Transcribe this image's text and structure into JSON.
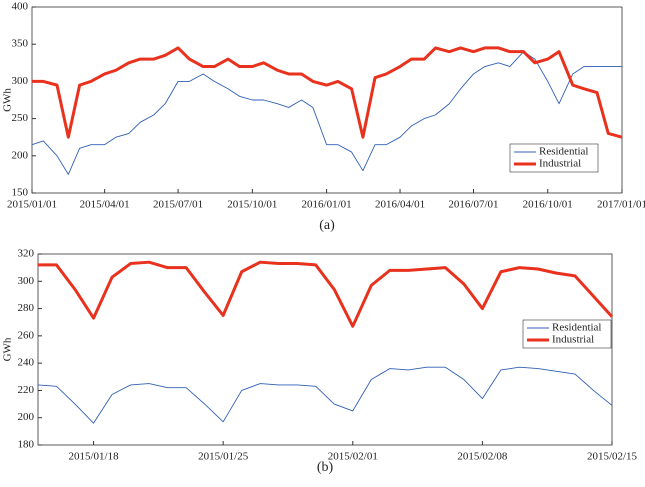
{
  "chart_data": [
    {
      "type": "line",
      "caption": "(a)",
      "ylabel": "GWh",
      "x": [
        "2015/01/01",
        "2015/01/15",
        "2015/02/01",
        "2015/02/15",
        "2015/03/01",
        "2015/03/15",
        "2015/04/01",
        "2015/04/15",
        "2015/05/01",
        "2015/05/15",
        "2015/06/01",
        "2015/06/15",
        "2015/07/01",
        "2015/07/15",
        "2015/08/01",
        "2015/08/15",
        "2015/09/01",
        "2015/09/15",
        "2015/10/01",
        "2015/10/15",
        "2015/11/01",
        "2015/11/15",
        "2015/12/01",
        "2015/12/15",
        "2016/01/01",
        "2016/01/15",
        "2016/02/01",
        "2016/02/15",
        "2016/03/01",
        "2016/03/15",
        "2016/04/01",
        "2016/04/15",
        "2016/05/01",
        "2016/05/15",
        "2016/06/01",
        "2016/06/15",
        "2016/07/01",
        "2016/07/15",
        "2016/08/01",
        "2016/08/15",
        "2016/09/01",
        "2016/09/15",
        "2016/10/01",
        "2016/10/15",
        "2016/11/01",
        "2016/11/15",
        "2016/12/01",
        "2016/12/15",
        "2017/01/01"
      ],
      "series": [
        {
          "name": "Residential",
          "color": "#2f5fb5",
          "width": 0.9,
          "values": [
            215,
            220,
            200,
            175,
            210,
            215,
            215,
            225,
            230,
            245,
            255,
            270,
            300,
            300,
            310,
            300,
            290,
            280,
            275,
            275,
            270,
            265,
            275,
            265,
            215,
            215,
            205,
            180,
            215,
            215,
            225,
            240,
            250,
            255,
            270,
            290,
            310,
            320,
            325,
            320,
            340,
            330,
            300,
            270,
            310,
            320,
            320,
            320,
            320
          ]
        },
        {
          "name": "Industrial",
          "color": "#e8321e",
          "width": 3,
          "values": [
            300,
            300,
            295,
            225,
            295,
            300,
            310,
            315,
            325,
            330,
            330,
            335,
            345,
            330,
            320,
            320,
            330,
            320,
            320,
            325,
            315,
            310,
            310,
            300,
            295,
            300,
            290,
            225,
            305,
            310,
            320,
            330,
            330,
            345,
            340,
            345,
            340,
            345,
            345,
            340,
            340,
            325,
            330,
            340,
            295,
            290,
            285,
            230,
            225
          ]
        }
      ],
      "xlim": [
        "2015/01/01",
        "2017/01/01"
      ],
      "xticks": [
        "2015/01/01",
        "2015/04/01",
        "2015/07/01",
        "2015/10/01",
        "2016/01/01",
        "2016/04/01",
        "2016/07/01",
        "2016/10/01",
        "2017/01/01"
      ],
      "ylim": [
        150,
        400
      ],
      "yticks": [
        150,
        200,
        250,
        300,
        350,
        400
      ]
    },
    {
      "type": "line",
      "caption": "(b)",
      "ylabel": "GWh",
      "x": [
        "2015/01/15",
        "2015/01/16",
        "2015/01/17",
        "2015/01/18",
        "2015/01/19",
        "2015/01/20",
        "2015/01/21",
        "2015/01/22",
        "2015/01/23",
        "2015/01/24",
        "2015/01/25",
        "2015/01/26",
        "2015/01/27",
        "2015/01/28",
        "2015/01/29",
        "2015/01/30",
        "2015/01/31",
        "2015/02/01",
        "2015/02/02",
        "2015/02/03",
        "2015/02/04",
        "2015/02/05",
        "2015/02/06",
        "2015/02/07",
        "2015/02/08",
        "2015/02/09",
        "2015/02/10",
        "2015/02/11",
        "2015/02/12",
        "2015/02/13",
        "2015/02/14",
        "2015/02/15"
      ],
      "series": [
        {
          "name": "Residential",
          "color": "#2f5fb5",
          "width": 0.9,
          "values": [
            224,
            223,
            210,
            196,
            217,
            224,
            225,
            222,
            222,
            210,
            197,
            220,
            225,
            224,
            224,
            223,
            210,
            205,
            228,
            236,
            235,
            237,
            237,
            228,
            214,
            235,
            237,
            236,
            234,
            232,
            220,
            209
          ]
        },
        {
          "name": "Industrial",
          "color": "#e8321e",
          "width": 3,
          "values": [
            312,
            312,
            294,
            273,
            303,
            313,
            314,
            310,
            310,
            292,
            275,
            307,
            314,
            313,
            313,
            312,
            294,
            267,
            297,
            308,
            308,
            309,
            310,
            298,
            280,
            307,
            310,
            309,
            306,
            304,
            289,
            274
          ]
        }
      ],
      "xlim": [
        "2015/01/15",
        "2015/02/15"
      ],
      "xticks": [
        "2015/01/18",
        "2015/01/25",
        "2015/02/01",
        "2015/02/08",
        "2015/02/15"
      ],
      "ylim": [
        180,
        320
      ],
      "yticks": [
        180,
        200,
        220,
        240,
        260,
        280,
        300,
        320
      ]
    }
  ]
}
